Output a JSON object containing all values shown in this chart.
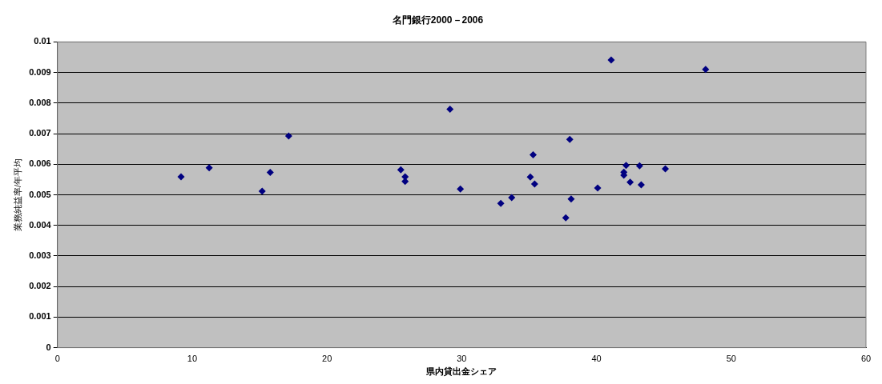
{
  "chart_data": {
    "type": "scatter",
    "title": "名門銀行2000－2006",
    "xlabel": "県内貸出金シェア",
    "ylabel": "業務純益率/年平均",
    "x": [
      9.17,
      11.26,
      15.19,
      15.79,
      17.16,
      25.48,
      25.8,
      25.8,
      29.13,
      29.9,
      32.9,
      33.71,
      35.09,
      35.3,
      35.41,
      37.72,
      38.02,
      38.12,
      40.09,
      41.09,
      42.03,
      42.03,
      42.2,
      42.5,
      43.2,
      43.32,
      45.11,
      48.1
    ],
    "series": [
      {
        "color": "#000080",
        "values": [
          0.00559,
          0.00588,
          0.00512,
          0.00573,
          0.00692,
          0.00582,
          0.00559,
          0.00544,
          0.0078,
          0.00519,
          0.00472,
          0.00491,
          0.00558,
          0.00631,
          0.00535,
          0.00425,
          0.00681,
          0.00486,
          0.00522,
          0.00941,
          0.00574,
          0.00564,
          0.00596,
          0.00541,
          0.00595,
          0.00533,
          0.00585,
          0.0091
        ]
      }
    ],
    "xlim": [
      0,
      60
    ],
    "xticks": [
      0,
      10,
      20,
      30,
      40,
      50,
      60
    ],
    "ylim": [
      0,
      0.01
    ],
    "yticks": [
      0,
      0.001,
      0.002,
      0.003,
      0.004,
      0.005,
      0.006,
      0.007,
      0.008,
      0.009,
      0.01
    ],
    "grid": "y",
    "legend": false,
    "marker": "diamond"
  }
}
